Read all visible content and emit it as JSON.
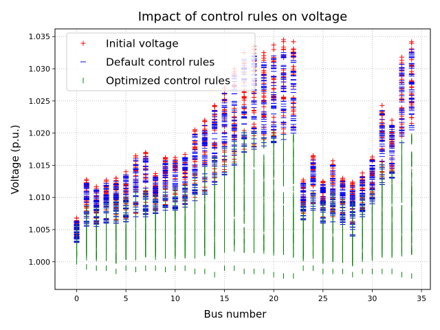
{
  "chart_data": {
    "type": "scatter",
    "title": "Impact of control rules on voltage",
    "xlabel": "Bus number",
    "ylabel": "Voltage (p.u.)",
    "xlim": [
      -2.2,
      35.9
    ],
    "ylim": [
      0.9957,
      1.0362
    ],
    "xticks": [
      0,
      5,
      10,
      15,
      20,
      25,
      30,
      35
    ],
    "yticks": [
      1.0,
      1.005,
      1.01,
      1.015,
      1.02,
      1.025,
      1.03,
      1.035
    ],
    "grid": true,
    "legend_position": "top-left",
    "buses": [
      0,
      1,
      2,
      3,
      4,
      5,
      6,
      7,
      8,
      9,
      10,
      11,
      12,
      13,
      14,
      15,
      16,
      17,
      18,
      19,
      20,
      21,
      22,
      23,
      24,
      25,
      26,
      27,
      28,
      29,
      30,
      31,
      32,
      33,
      34
    ],
    "series": [
      {
        "name": "Initial voltage",
        "marker": "+",
        "color": "#ff0000",
        "min": [
          1.003,
          1.006,
          1.006,
          1.0065,
          1.0065,
          1.0068,
          1.0075,
          1.0075,
          1.008,
          1.0085,
          1.0085,
          1.009,
          1.01,
          1.011,
          1.0125,
          1.014,
          1.0155,
          1.0175,
          1.018,
          1.019,
          1.0195,
          1.02,
          1.021,
          1.0075,
          1.009,
          1.007,
          1.007,
          1.0065,
          1.006,
          1.008,
          1.01,
          1.013,
          1.014,
          1.0195,
          1.0215
        ],
        "max": [
          1.0068,
          1.0128,
          1.0117,
          1.0127,
          1.013,
          1.014,
          1.0165,
          1.017,
          1.0137,
          1.0162,
          1.0162,
          1.0167,
          1.0205,
          1.022,
          1.0243,
          1.027,
          1.03,
          1.0325,
          1.0335,
          1.0325,
          1.0337,
          1.0345,
          1.0342,
          1.0127,
          1.0165,
          1.0125,
          1.0157,
          1.013,
          1.0124,
          1.0138,
          1.0163,
          1.0243,
          1.022,
          1.0318,
          1.0342
        ]
      },
      {
        "name": "Default control rules",
        "marker": "_",
        "color": "#0000ff",
        "min": [
          1.003,
          1.0055,
          1.0055,
          1.006,
          1.006,
          1.0062,
          1.007,
          1.007,
          1.0075,
          1.008,
          1.008,
          1.0085,
          1.0095,
          1.0105,
          1.012,
          1.0135,
          1.015,
          1.017,
          1.0175,
          1.018,
          1.0185,
          1.019,
          1.02,
          1.0065,
          1.008,
          1.006,
          1.0062,
          1.0058,
          1.004,
          1.007,
          1.009,
          1.012,
          1.013,
          1.0185,
          1.0205
        ],
        "max": [
          1.0063,
          1.0122,
          1.0112,
          1.0122,
          1.0125,
          1.0135,
          1.016,
          1.0163,
          1.0132,
          1.0157,
          1.0157,
          1.0162,
          1.0198,
          1.0212,
          1.0235,
          1.0262,
          1.029,
          1.0315,
          1.032,
          1.031,
          1.032,
          1.0325,
          1.0325,
          1.0122,
          1.0158,
          1.012,
          1.015,
          1.0125,
          1.0118,
          1.0132,
          1.0158,
          1.0235,
          1.0212,
          1.0307,
          1.033
        ]
      },
      {
        "name": "Optimized control rules",
        "marker": "|",
        "color": "#008000",
        "min": [
          1.0,
          0.9992,
          0.999,
          0.999,
          0.9985,
          0.999,
          0.9988,
          0.999,
          0.999,
          0.9988,
          0.999,
          0.999,
          0.9985,
          0.9985,
          0.998,
          0.999,
          0.999,
          0.9985,
          0.9985,
          0.9985,
          0.998,
          0.9978,
          0.9978,
          0.999,
          0.999,
          0.9985,
          0.9985,
          0.9985,
          0.998,
          0.9985,
          0.9985,
          0.9985,
          0.9985,
          0.998,
          0.9978
        ],
        "max": [
          1.0055,
          1.0085,
          1.0082,
          1.009,
          1.0092,
          1.0098,
          1.0108,
          1.011,
          1.01,
          1.011,
          1.0112,
          1.0118,
          1.0135,
          1.0145,
          1.016,
          1.0175,
          1.0185,
          1.02,
          1.02,
          1.019,
          1.02,
          1.0195,
          1.0195,
          1.0088,
          1.0105,
          1.009,
          1.0105,
          1.0095,
          1.009,
          1.01,
          1.011,
          1.015,
          1.014,
          1.0185,
          1.0195
        ]
      }
    ]
  }
}
